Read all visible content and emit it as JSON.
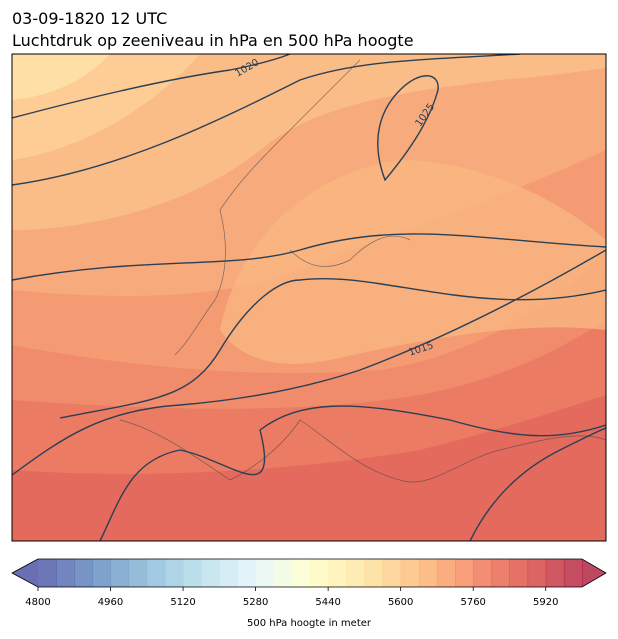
{
  "header": {
    "title": "03-09-1820 12 UTC",
    "subtitle": "Luchtdruk op zeeniveau in hPa en 500 hPa hoogte"
  },
  "map": {
    "isobar_labels": [
      1020,
      1025,
      1015
    ]
  },
  "colorbar": {
    "range": [
      4800,
      6000
    ],
    "ticks": [
      4800,
      4960,
      5120,
      5280,
      5440,
      5600,
      5760,
      5920
    ],
    "label": "500 hPa hoogte in meter",
    "colormap": "RdYlBu_r"
  }
}
